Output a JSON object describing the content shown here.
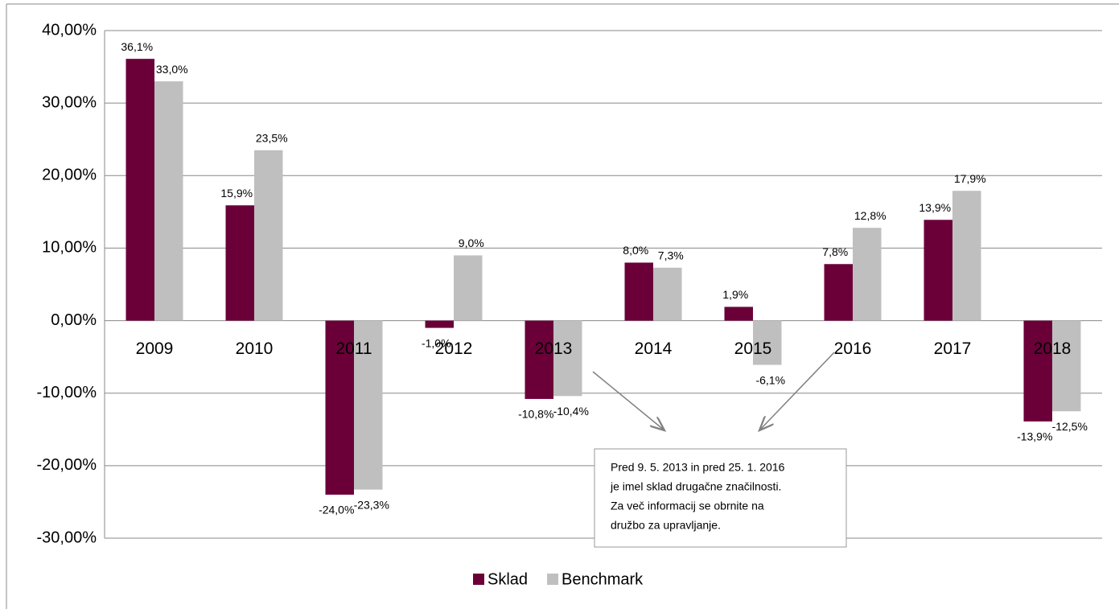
{
  "chart_data": {
    "type": "bar",
    "categories": [
      "2009",
      "2010",
      "2011",
      "2012",
      "2013",
      "2014",
      "2015",
      "2016",
      "2017",
      "2018"
    ],
    "series": [
      {
        "name": "Sklad",
        "color": "#6b0039",
        "values": [
          36.1,
          15.9,
          -24.0,
          -1.0,
          -10.8,
          8.0,
          1.9,
          7.8,
          13.9,
          -13.9
        ],
        "value_labels": [
          "36,1%",
          "15,9%",
          "-24,0%",
          "-1,0%",
          "-10,8%",
          "8,0%",
          "1,9%",
          "7,8%",
          "13,9%",
          "-13,9%"
        ]
      },
      {
        "name": "Benchmark",
        "color": "#bfbfbf",
        "values": [
          33.0,
          23.5,
          -23.3,
          9.0,
          -10.4,
          7.3,
          -6.1,
          12.8,
          17.9,
          -12.5
        ],
        "value_labels": [
          "33,0%",
          "23,5%",
          "-23,3%",
          "9,0%",
          "-10,4%",
          "7,3%",
          "-6,1%",
          "12,8%",
          "17,9%",
          "-12,5%"
        ]
      }
    ],
    "ylim": [
      -30,
      40
    ],
    "yticks": [
      {
        "value": -30,
        "label": "-30,00%"
      },
      {
        "value": -20,
        "label": "-20,00%"
      },
      {
        "value": -10,
        "label": "-10,00%"
      },
      {
        "value": 0,
        "label": "0,00%"
      },
      {
        "value": 10,
        "label": "10,00%"
      },
      {
        "value": 20,
        "label": "20,00%"
      },
      {
        "value": 30,
        "label": "30,00%"
      },
      {
        "value": 40,
        "label": "40,00%"
      }
    ],
    "grid": true,
    "legend": "bottom",
    "annotation": [
      "Pred 9. 5. 2013 in pred 25. 1. 2016",
      "je imel sklad drugačne značilnosti.",
      "Za več informacij se obrnite na",
      "družbo za upravljanje."
    ]
  }
}
